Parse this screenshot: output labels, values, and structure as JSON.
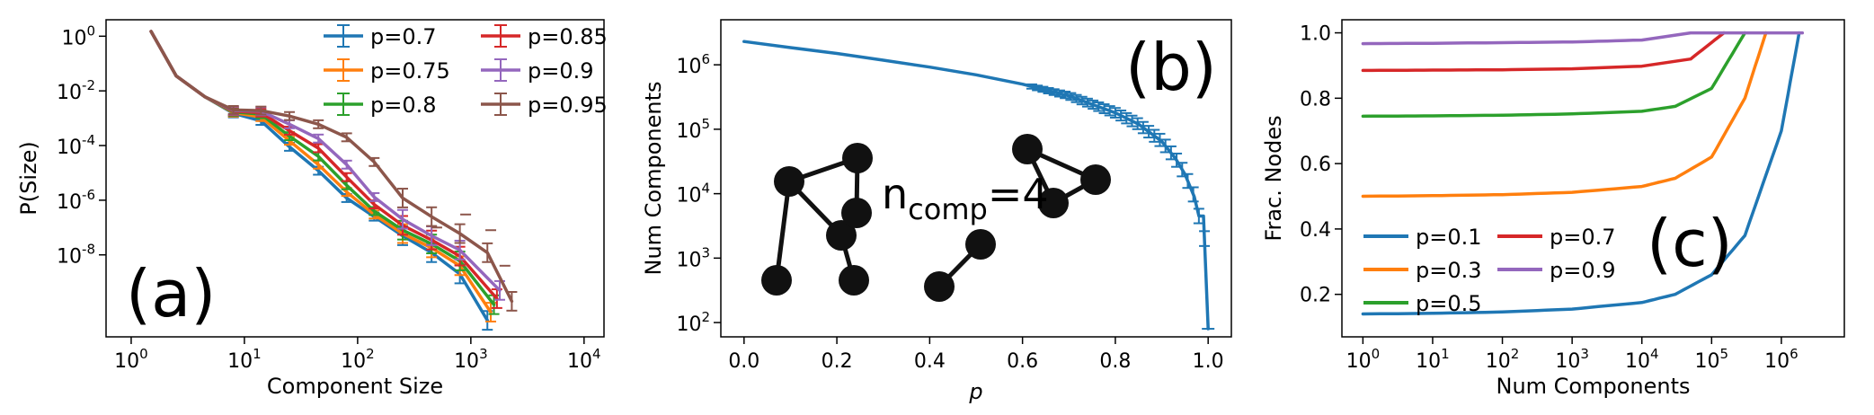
{
  "chart_data": [
    {
      "panel": "a",
      "type": "line",
      "xlabel": "Component Size",
      "ylabel": "P(Size)",
      "xscale": "log",
      "yscale": "log",
      "xlim": [
        0.6,
        15000
      ],
      "ylim": [
        1e-11,
        4
      ],
      "xticks": [
        {
          "v": 1,
          "b": "10",
          "e": "0"
        },
        {
          "v": 10,
          "b": "10",
          "e": "1"
        },
        {
          "v": 100,
          "b": "10",
          "e": "2"
        },
        {
          "v": 1000,
          "b": "10",
          "e": "3"
        },
        {
          "v": 10000,
          "b": "10",
          "e": "4"
        }
      ],
      "yticks": [
        {
          "v": 1,
          "b": "10",
          "e": "0"
        },
        {
          "v": 0.01,
          "b": "10",
          "e": "-2"
        },
        {
          "v": 0.0001,
          "b": "10",
          "e": "-4"
        },
        {
          "v": 1e-06,
          "b": "10",
          "e": "-6"
        },
        {
          "v": 1e-08,
          "b": "10",
          "e": "-8"
        }
      ],
      "panel_label": "(a)",
      "legend_position": "top-right",
      "error_bars": true,
      "series": [
        {
          "name": "p=0.7",
          "color": "#1f77b4",
          "x": [
            1.5,
            2.5,
            4.5,
            8,
            14,
            25,
            45,
            80,
            140,
            250,
            450,
            800,
            1400
          ],
          "y": [
            1.5,
            0.035,
            0.006,
            0.0015,
            0.0008,
            9e-05,
            1.2e-05,
            1.2e-06,
            2.5e-07,
            5e-08,
            1.2e-08,
            2e-09,
            4e-11
          ]
        },
        {
          "name": "p=0.75",
          "color": "#ff7f0e",
          "x": [
            1.5,
            2.5,
            4.5,
            8,
            14,
            25,
            45,
            80,
            140,
            250,
            450,
            800,
            1500
          ],
          "y": [
            1.5,
            0.035,
            0.006,
            0.0016,
            0.0011,
            0.00015,
            2e-05,
            2e-06,
            3e-07,
            6e-08,
            1.8e-08,
            4e-09,
            8e-11
          ]
        },
        {
          "name": "p=0.8",
          "color": "#2ca02c",
          "x": [
            1.5,
            2.5,
            4.5,
            8,
            14,
            25,
            45,
            80,
            140,
            250,
            450,
            800,
            1600
          ],
          "y": [
            1.5,
            0.035,
            0.006,
            0.0017,
            0.0014,
            0.00022,
            4e-05,
            3.5e-06,
            4e-07,
            8e-08,
            2.5e-08,
            6e-09,
            1.5e-10
          ]
        },
        {
          "name": "p=0.85",
          "color": "#d62728",
          "x": [
            1.5,
            2.5,
            4.5,
            8,
            14,
            25,
            45,
            80,
            140,
            250,
            450,
            800,
            1700
          ],
          "y": [
            1.5,
            0.035,
            0.006,
            0.0018,
            0.0016,
            0.00035,
            8e-05,
            7e-06,
            7e-07,
            1.2e-07,
            3.5e-08,
            9e-09,
            2.5e-10
          ]
        },
        {
          "name": "p=0.9",
          "color": "#9467bd",
          "x": [
            1.5,
            2.5,
            4.5,
            8,
            14,
            25,
            45,
            80,
            140,
            250,
            450,
            800,
            1800
          ],
          "y": [
            1.5,
            0.035,
            0.006,
            0.0019,
            0.0018,
            0.0006,
            0.00018,
            2e-05,
            1.3e-06,
            2e-07,
            5e-08,
            1.5e-08,
            5e-10
          ]
        },
        {
          "name": "p=0.95",
          "color": "#8c564b",
          "x": [
            1.5,
            2.5,
            4.5,
            8,
            14,
            25,
            45,
            80,
            140,
            250,
            450,
            800,
            1400,
            2300
          ],
          "y": [
            1.5,
            0.035,
            0.006,
            0.002,
            0.0019,
            0.0012,
            0.0006,
            0.0002,
            2.5e-05,
            1.2e-06,
            2.5e-07,
            6e-08,
            1.2e-08,
            2e-10
          ]
        }
      ]
    },
    {
      "panel": "b",
      "type": "line",
      "xlabel": "p",
      "ylabel": "Num Components",
      "yscale": "log",
      "xlim": [
        -0.05,
        1.05
      ],
      "ylim": [
        60,
        5000000
      ],
      "xticks": [
        "0.0",
        "0.2",
        "0.4",
        "0.6",
        "0.8",
        "1.0"
      ],
      "yticks": [
        {
          "v": 100,
          "b": "10",
          "e": "2"
        },
        {
          "v": 1000,
          "b": "10",
          "e": "3"
        },
        {
          "v": 10000,
          "b": "10",
          "e": "4"
        },
        {
          "v": 100000,
          "b": "10",
          "e": "5"
        },
        {
          "v": 1000000,
          "b": "10",
          "e": "6"
        }
      ],
      "panel_label": "(b)",
      "annotation": {
        "main": "n",
        "sub": "comp",
        "value": "=4"
      },
      "error_bars": true,
      "series": [
        {
          "color": "#1f77b4",
          "x": [
            0.0,
            0.1,
            0.2,
            0.3,
            0.4,
            0.5,
            0.6,
            0.7,
            0.8,
            0.85,
            0.9,
            0.93,
            0.95,
            0.97,
            0.98,
            0.99,
            1.0
          ],
          "y": [
            2300000,
            1850000,
            1500000,
            1180000,
            920000,
            700000,
            500000,
            330000,
            180000,
            120000,
            65000,
            35000,
            20000,
            9000,
            4500,
            4500,
            80
          ]
        }
      ]
    },
    {
      "panel": "c",
      "type": "line",
      "xlabel": "Num Components",
      "ylabel": "Frac. Nodes",
      "xscale": "log",
      "xlim": [
        0.5,
        8000000
      ],
      "ylim": [
        0.07,
        1.04
      ],
      "xticks": [
        {
          "v": 1,
          "b": "10",
          "e": "0"
        },
        {
          "v": 10,
          "b": "10",
          "e": "1"
        },
        {
          "v": 100,
          "b": "10",
          "e": "2"
        },
        {
          "v": 1000,
          "b": "10",
          "e": "3"
        },
        {
          "v": 10000,
          "b": "10",
          "e": "4"
        },
        {
          "v": 100000,
          "b": "10",
          "e": "5"
        },
        {
          "v": 1000000,
          "b": "10",
          "e": "6"
        }
      ],
      "yticks": [
        "0.2",
        "0.4",
        "0.6",
        "0.8",
        "1.0"
      ],
      "panel_label": "(c)",
      "legend_position": "lower-left",
      "series": [
        {
          "name": "p=0.1",
          "color": "#1f77b4",
          "x": [
            1,
            10,
            100,
            1000,
            10000,
            30000,
            100000,
            300000,
            1000000,
            1800000
          ],
          "y": [
            0.14,
            0.142,
            0.146,
            0.155,
            0.175,
            0.2,
            0.26,
            0.38,
            0.7,
            1.0
          ]
        },
        {
          "name": "p=0.3",
          "color": "#ff7f0e",
          "x": [
            1,
            10,
            100,
            1000,
            10000,
            30000,
            100000,
            300000,
            600000
          ],
          "y": [
            0.5,
            0.502,
            0.505,
            0.512,
            0.53,
            0.555,
            0.62,
            0.8,
            1.0
          ]
        },
        {
          "name": "p=0.5",
          "color": "#2ca02c",
          "x": [
            1,
            10,
            100,
            1000,
            10000,
            30000,
            100000,
            300000
          ],
          "y": [
            0.745,
            0.746,
            0.748,
            0.752,
            0.76,
            0.775,
            0.83,
            1.0
          ]
        },
        {
          "name": "p=0.7",
          "color": "#d62728",
          "x": [
            1,
            10,
            100,
            1000,
            10000,
            50000,
            150000
          ],
          "y": [
            0.885,
            0.886,
            0.887,
            0.89,
            0.898,
            0.92,
            1.0
          ]
        },
        {
          "name": "p=0.9",
          "color": "#9467bd",
          "x": [
            1,
            10,
            100,
            1000,
            10000,
            50000,
            2000000
          ],
          "y": [
            0.967,
            0.968,
            0.97,
            0.972,
            0.978,
            1.0,
            1.0
          ]
        }
      ]
    }
  ]
}
